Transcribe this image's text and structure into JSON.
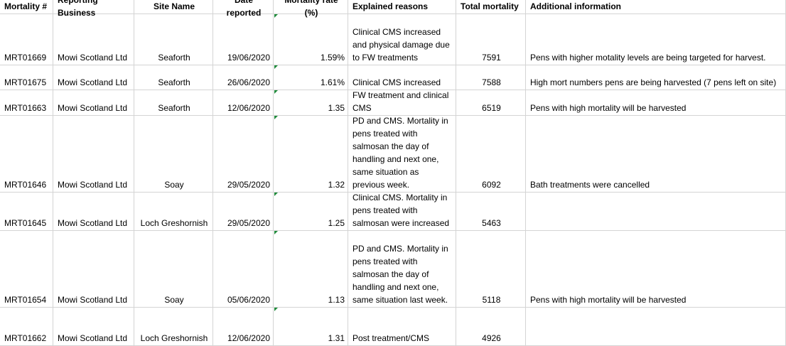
{
  "table": {
    "header": [
      "Mortality #",
      "Reporting Business",
      "Site Name",
      "Date reported",
      "Mortality rate (%)",
      "Explained  reasons",
      "Total mortality",
      "Additional information"
    ],
    "rows": [
      [
        "MRT01669",
        "Mowi Scotland Ltd",
        "Seaforth",
        "19/06/2020",
        "1.59%",
        "Clinical CMS increased and physical damage due to FW treatments",
        7591,
        "Pens with higher motality levels are being targeted for harvest."
      ],
      [
        "MRT01675",
        "Mowi Scotland Ltd",
        "Seaforth",
        "26/06/2020",
        "1.61%",
        "Clinical CMS increased",
        7588,
        "High mort numbers pens are being harvested (7 pens left on site)"
      ],
      [
        "MRT01663",
        "Mowi Scotland Ltd",
        "Seaforth",
        "12/06/2020",
        1.35,
        "FW treatment and clinical CMS",
        6519,
        "Pens with high mortality will be harvested"
      ],
      [
        "MRT01646",
        "Mowi Scotland Ltd",
        "Soay",
        "29/05/2020",
        1.32,
        "PD and CMS. Mortality in pens treated with salmosan the day of handling and next one, same situation as previous week.",
        6092,
        "Bath treatments were cancelled"
      ],
      [
        "MRT01645",
        "Mowi Scotland Ltd",
        "Loch Greshornish",
        "29/05/2020",
        1.25,
        "Clinical CMS. Mortality in pens treated with salmosan were increased",
        5463,
        null
      ],
      [
        "MRT01654",
        "Mowi Scotland Ltd",
        "Soay",
        "05/06/2020",
        1.13,
        "PD and CMS. Mortality in pens treated with salmosan the day of handling and next one, same situation last week.",
        5118,
        "Pens with high mortality will be harvested"
      ],
      [
        "MRT01662",
        "Mowi Scotland Ltd",
        "Loch Greshornish",
        "12/06/2020",
        1.31,
        "Post treatment/CMS",
        4926,
        null
      ]
    ]
  }
}
